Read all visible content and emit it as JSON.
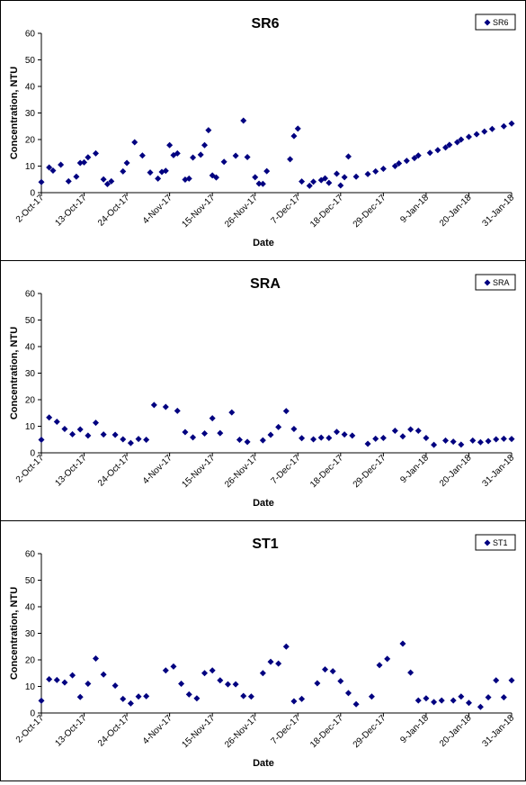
{
  "colors": {
    "marker": "#000080",
    "axis": "#000000",
    "background": "#ffffff"
  },
  "chart_data": [
    {
      "type": "scatter",
      "title": "SR6",
      "xlabel": "Date",
      "ylabel": "Concentration, NTU",
      "legend": [
        "SR6"
      ],
      "legend_position": "top-right",
      "grid": false,
      "xlim": [
        "2-Oct-17",
        "31-Jan-18"
      ],
      "ylim": [
        0,
        60
      ],
      "yticks": [
        0,
        10,
        20,
        30,
        40,
        50,
        60
      ],
      "xticks": [
        "2-Oct-17",
        "13-Oct-17",
        "24-Oct-17",
        "4-Nov-17",
        "15-Nov-17",
        "26-Nov-17",
        "7-Dec-17",
        "18-Dec-17",
        "29-Dec-17",
        "9-Jan-18",
        "20-Jan-18",
        "31-Jan-18"
      ],
      "series": [
        {
          "name": "SR6",
          "x": [
            "2-Oct-17",
            "4-Oct-17",
            "5-Oct-17",
            "7-Oct-17",
            "9-Oct-17",
            "11-Oct-17",
            "12-Oct-17",
            "13-Oct-17",
            "14-Oct-17",
            "16-Oct-17",
            "18-Oct-17",
            "19-Oct-17",
            "20-Oct-17",
            "23-Oct-17",
            "24-Oct-17",
            "26-Oct-17",
            "28-Oct-17",
            "30-Oct-17",
            "1-Nov-17",
            "2-Nov-17",
            "3-Nov-17",
            "4-Nov-17",
            "5-Nov-17",
            "6-Nov-17",
            "8-Nov-17",
            "9-Nov-17",
            "10-Nov-17",
            "12-Nov-17",
            "13-Nov-17",
            "14-Nov-17",
            "15-Nov-17",
            "16-Nov-17",
            "18-Nov-17",
            "21-Nov-17",
            "23-Nov-17",
            "24-Nov-17",
            "26-Nov-17",
            "27-Nov-17",
            "28-Nov-17",
            "29-Nov-17",
            "5-Dec-17",
            "6-Dec-17",
            "7-Dec-17",
            "8-Dec-17",
            "10-Dec-17",
            "11-Dec-17",
            "13-Dec-17",
            "14-Dec-17",
            "15-Dec-17",
            "17-Dec-17",
            "18-Dec-17",
            "19-Dec-17",
            "20-Dec-17",
            "22-Dec-17",
            "25-Dec-17",
            "27-Dec-17",
            "29-Dec-17",
            "1-Jan-18",
            "2-Jan-18",
            "4-Jan-18",
            "6-Jan-18",
            "7-Jan-18",
            "10-Jan-18",
            "12-Jan-18",
            "14-Jan-18",
            "15-Jan-18",
            "17-Jan-18",
            "18-Jan-18",
            "20-Jan-18",
            "22-Jan-18",
            "24-Jan-18",
            "26-Jan-18",
            "29-Jan-18",
            "31-Jan-18"
          ],
          "y": [
            4,
            9.5,
            8.3,
            10.5,
            4.3,
            6,
            11.2,
            11.4,
            13.3,
            14.8,
            5,
            3.2,
            4.3,
            8,
            11.2,
            19,
            14,
            7.6,
            5.3,
            7.8,
            8.2,
            17.9,
            14.1,
            14.8,
            4.9,
            5.3,
            13.2,
            14.3,
            17.9,
            23.5,
            6.5,
            5.7,
            11.6,
            13.9,
            27.1,
            13.4,
            5.8,
            3.4,
            3.3,
            8.1,
            12.6,
            21.3,
            24.1,
            4.2,
            2.6,
            4.1,
            4.7,
            5.4,
            3.7,
            7.1,
            2.7,
            5.8,
            13.6,
            6,
            7,
            8,
            9,
            10,
            11,
            12,
            13,
            14,
            15,
            16,
            17,
            18,
            19,
            20,
            21,
            22,
            23,
            24,
            25,
            26
          ]
        }
      ]
    },
    {
      "type": "scatter",
      "title": "SRA",
      "xlabel": "Date",
      "ylabel": "Concentration, NTU",
      "legend": [
        "SRA"
      ],
      "legend_position": "top-right",
      "grid": false,
      "xlim": [
        "2-Oct-17",
        "31-Jan-18"
      ],
      "ylim": [
        0,
        60
      ],
      "yticks": [
        0,
        10,
        20,
        30,
        40,
        50,
        60
      ],
      "xticks": [
        "2-Oct-17",
        "13-Oct-17",
        "24-Oct-17",
        "4-Nov-17",
        "15-Nov-17",
        "26-Nov-17",
        "7-Dec-17",
        "18-Dec-17",
        "29-Dec-17",
        "9-Jan-18",
        "20-Jan-18",
        "31-Jan-18"
      ],
      "series": [
        {
          "name": "SRA",
          "x": [
            "2-Oct-17",
            "4-Oct-17",
            "6-Oct-17",
            "8-Oct-17",
            "10-Oct-17",
            "12-Oct-17",
            "14-Oct-17",
            "16-Oct-17",
            "18-Oct-17",
            "21-Oct-17",
            "23-Oct-17",
            "25-Oct-17",
            "27-Oct-17",
            "29-Oct-17",
            "31-Oct-17",
            "3-Nov-17",
            "6-Nov-17",
            "8-Nov-17",
            "10-Nov-17",
            "13-Nov-17",
            "15-Nov-17",
            "17-Nov-17",
            "20-Nov-17",
            "22-Nov-17",
            "24-Nov-17",
            "28-Nov-17",
            "30-Nov-17",
            "2-Dec-17",
            "4-Dec-17",
            "6-Dec-17",
            "8-Dec-17",
            "11-Dec-17",
            "13-Dec-17",
            "15-Dec-17",
            "17-Dec-17",
            "19-Dec-17",
            "21-Dec-17",
            "25-Dec-17",
            "27-Dec-17",
            "29-Dec-17",
            "1-Jan-18",
            "3-Jan-18",
            "5-Jan-18",
            "7-Jan-18",
            "9-Jan-18",
            "11-Jan-18",
            "14-Jan-18",
            "16-Jan-18",
            "18-Jan-18",
            "21-Jan-18",
            "23-Jan-18",
            "25-Jan-18",
            "27-Jan-18",
            "29-Jan-18",
            "31-Jan-18"
          ],
          "y": [
            4.9,
            13.3,
            11.7,
            9,
            7,
            8.8,
            6.5,
            11.3,
            6.9,
            6.8,
            5.1,
            3.7,
            5.2,
            4.9,
            18,
            17.3,
            15.8,
            7.8,
            5.8,
            7.3,
            13,
            7.4,
            15.2,
            4.9,
            4.1,
            4.7,
            6.8,
            9.7,
            15.7,
            9,
            5.5,
            5.1,
            5.7,
            5.6,
            7.9,
            6.9,
            6.5,
            3.4,
            5.3,
            5.6,
            8.3,
            6.2,
            8.8,
            8.3,
            5.6,
            3,
            4.6,
            4.2,
            3.1,
            4.6,
            4,
            4.4,
            5.1,
            5.3,
            5.2
          ]
        }
      ]
    },
    {
      "type": "scatter",
      "title": "ST1",
      "xlabel": "Date",
      "ylabel": "Concentration, NTU",
      "legend": [
        "ST1"
      ],
      "legend_position": "top-right",
      "grid": false,
      "xlim": [
        "2-Oct-17",
        "31-Jan-18"
      ],
      "ylim": [
        0,
        60
      ],
      "yticks": [
        0,
        10,
        20,
        30,
        40,
        50,
        60
      ],
      "xticks": [
        "2-Oct-17",
        "13-Oct-17",
        "24-Oct-17",
        "4-Nov-17",
        "15-Nov-17",
        "26-Nov-17",
        "7-Dec-17",
        "18-Dec-17",
        "29-Dec-17",
        "9-Jan-18",
        "20-Jan-18",
        "31-Jan-18"
      ],
      "series": [
        {
          "name": "ST1",
          "x": [
            "2-Oct-17",
            "4-Oct-17",
            "6-Oct-17",
            "8-Oct-17",
            "10-Oct-17",
            "12-Oct-17",
            "14-Oct-17",
            "16-Oct-17",
            "18-Oct-17",
            "21-Oct-17",
            "23-Oct-17",
            "25-Oct-17",
            "27-Oct-17",
            "29-Oct-17",
            "3-Nov-17",
            "5-Nov-17",
            "7-Nov-17",
            "9-Nov-17",
            "11-Nov-17",
            "13-Nov-17",
            "15-Nov-17",
            "17-Nov-17",
            "19-Nov-17",
            "21-Nov-17",
            "23-Nov-17",
            "25-Nov-17",
            "28-Nov-17",
            "30-Nov-17",
            "2-Dec-17",
            "4-Dec-17",
            "6-Dec-17",
            "8-Dec-17",
            "12-Dec-17",
            "14-Dec-17",
            "16-Dec-17",
            "18-Dec-17",
            "20-Dec-17",
            "22-Dec-17",
            "26-Dec-17",
            "28-Dec-17",
            "30-Dec-17",
            "3-Jan-18",
            "5-Jan-18",
            "7-Jan-18",
            "9-Jan-18",
            "11-Jan-18",
            "13-Jan-18",
            "16-Jan-18",
            "18-Jan-18",
            "20-Jan-18",
            "23-Jan-18",
            "25-Jan-18",
            "27-Jan-18",
            "29-Jan-18",
            "31-Jan-18"
          ],
          "y": [
            4.6,
            12.7,
            12.4,
            11.5,
            14.2,
            6,
            11,
            20.5,
            14.5,
            10.3,
            5.3,
            3.6,
            6.2,
            6.3,
            16,
            17.5,
            11,
            7,
            5.5,
            15,
            16,
            12.3,
            10.8,
            10.8,
            6.4,
            6.2,
            15,
            19.3,
            18.6,
            25,
            4.4,
            5.3,
            11.2,
            16.4,
            15.7,
            12,
            7.5,
            3.3,
            6.2,
            18,
            20.4,
            26.1,
            15.2,
            4.7,
            5.5,
            4.1,
            4.7,
            4.7,
            6.2,
            3.8,
            2.3,
            5.9,
            12.3,
            5.9,
            12.3
          ]
        }
      ]
    }
  ]
}
